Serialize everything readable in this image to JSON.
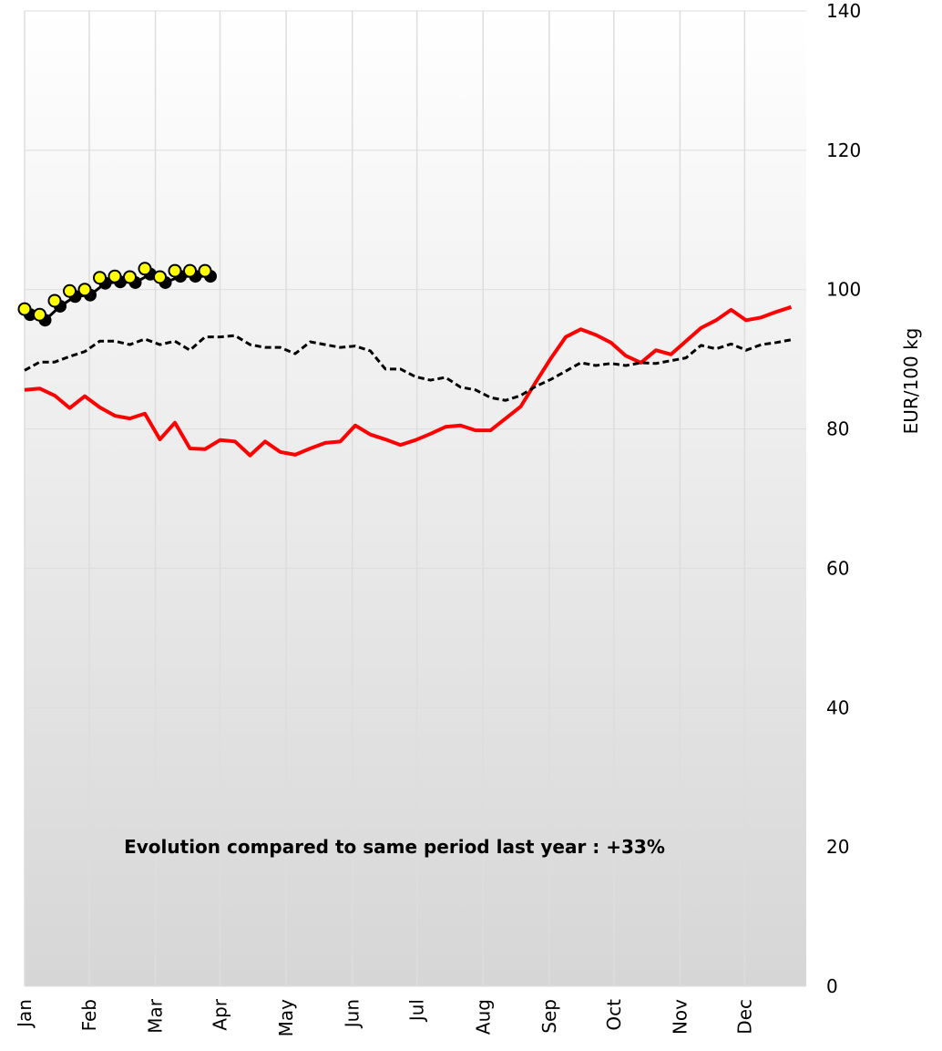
{
  "chart_data": {
    "type": "line",
    "y_label": "EUR/100 kg",
    "annotation": "Evolution compared to same period last year : +33%",
    "x": [
      1,
      2,
      3,
      4,
      5,
      6,
      7,
      8,
      9,
      10,
      11,
      12,
      13,
      14,
      15,
      16,
      17,
      18,
      19,
      20,
      21,
      22,
      23,
      24,
      25,
      26,
      27,
      28,
      29,
      30,
      31,
      32,
      33,
      34,
      35,
      36,
      37,
      38,
      39,
      40,
      41,
      42,
      43,
      44,
      45,
      46,
      47,
      48,
      49,
      50,
      51,
      52
    ],
    "xlim": [
      1,
      53
    ],
    "xticks": [
      {
        "value": 1,
        "label": "Jan"
      },
      {
        "value": 5.3,
        "label": "Feb"
      },
      {
        "value": 9.7,
        "label": "Mar"
      },
      {
        "value": 14,
        "label": "Apr"
      },
      {
        "value": 18.4,
        "label": "May"
      },
      {
        "value": 22.8,
        "label": "Jun"
      },
      {
        "value": 27.1,
        "label": "Jul"
      },
      {
        "value": 31.5,
        "label": "Aug"
      },
      {
        "value": 35.9,
        "label": "Sep"
      },
      {
        "value": 40.2,
        "label": "Oct"
      },
      {
        "value": 44.6,
        "label": "Nov"
      },
      {
        "value": 48.9,
        "label": "Dec"
      }
    ],
    "ylim": [
      0,
      140
    ],
    "yticks": [
      0,
      20,
      40,
      60,
      80,
      100,
      120,
      140
    ],
    "grid": true,
    "series": [
      {
        "color": "#ff0000",
        "style": "solid",
        "values": [
          85.6,
          85.8,
          84.8,
          83.0,
          84.7,
          83.1,
          81.9,
          81.5,
          82.2,
          78.5,
          80.9,
          77.2,
          77.1,
          78.4,
          78.2,
          76.2,
          78.2,
          76.7,
          76.3,
          77.2,
          78.0,
          78.2,
          80.5,
          79.2,
          78.5,
          77.7,
          78.4,
          79.3,
          80.3,
          80.5,
          79.8,
          79.8,
          81.5,
          83.2,
          86.7,
          90.1,
          93.2,
          94.3,
          93.5,
          92.4,
          90.5,
          89.5,
          91.3,
          90.7,
          92.6,
          94.5,
          95.6,
          97.1,
          95.6,
          96.0,
          96.8,
          97.5
        ]
      },
      {
        "color": "#000000",
        "style": "dashed",
        "values": [
          88.4,
          89.6,
          89.6,
          90.4,
          91.1,
          92.6,
          92.6,
          92.1,
          92.9,
          92.1,
          92.6,
          91.3,
          93.2,
          93.2,
          93.4,
          92.1,
          91.7,
          91.7,
          90.8,
          92.5,
          92.1,
          91.7,
          91.9,
          91.2,
          88.6,
          88.6,
          87.5,
          87.0,
          87.4,
          86.0,
          85.6,
          84.5,
          84.1,
          84.8,
          86.1,
          87.1,
          88.3,
          89.5,
          89.1,
          89.4,
          89.1,
          89.5,
          89.4,
          89.8,
          90.2,
          92.0,
          91.5,
          92.2,
          91.3,
          92.1,
          92.4,
          92.8
        ]
      },
      {
        "color": "#ffff00",
        "style": "marker",
        "values": [
          97.2,
          96.4,
          98.4,
          99.8,
          100.0,
          101.7,
          101.9,
          101.8,
          103.0,
          101.8,
          102.7,
          102.7,
          102.7,
          null,
          null,
          null,
          null,
          null,
          null,
          null,
          null,
          null,
          null,
          null,
          null,
          null,
          null,
          null,
          null,
          null,
          null,
          null,
          null,
          null,
          null,
          null,
          null,
          null,
          null,
          null,
          null,
          null,
          null,
          null,
          null,
          null,
          null,
          null,
          null,
          null,
          null,
          null
        ]
      }
    ]
  }
}
